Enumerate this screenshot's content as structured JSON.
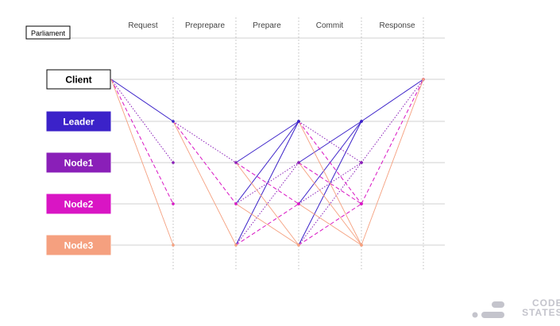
{
  "title": "Parliament",
  "phases": [
    "Request",
    "Preprepare",
    "Prepare",
    "Commit",
    "Response"
  ],
  "nodes": [
    {
      "label": "Client",
      "color": "#ffffff",
      "text_color": "#000000"
    },
    {
      "label": "Leader",
      "color": "#3b22c9",
      "text_color": "#ffffff"
    },
    {
      "label": "Node1",
      "color": "#8a1fb8",
      "text_color": "#ffffff"
    },
    {
      "label": "Node2",
      "color": "#d915c4",
      "text_color": "#ffffff"
    },
    {
      "label": "Node3",
      "color": "#f5a07f",
      "text_color": "#ffffff"
    }
  ],
  "message_colors": {
    "Leader": "#3b22c9",
    "Node1": "#8a1fb8",
    "Node2": "#d915c4",
    "Node3": "#f5a07f",
    "Client": "#3b22c9"
  },
  "messages": [
    {
      "phase_from": 0,
      "from": "Client",
      "to": "Leader",
      "style": "solid",
      "color_of": "Leader"
    },
    {
      "phase_from": 0,
      "from": "Client",
      "to": "Node1",
      "style": "dotted",
      "color_of": "Node1"
    },
    {
      "phase_from": 0,
      "from": "Client",
      "to": "Node2",
      "style": "dashed",
      "color_of": "Node2"
    },
    {
      "phase_from": 0,
      "from": "Client",
      "to": "Node3",
      "style": "solid",
      "color_of": "Node3"
    },
    {
      "phase_from": 1,
      "from": "Leader",
      "to": "Node1",
      "style": "dotted",
      "color_of": "Node1"
    },
    {
      "phase_from": 1,
      "from": "Leader",
      "to": "Node2",
      "style": "dashed",
      "color_of": "Node2"
    },
    {
      "phase_from": 1,
      "from": "Leader",
      "to": "Node3",
      "style": "solid",
      "color_of": "Node3"
    },
    {
      "phase_from": 2,
      "from": "Node1",
      "to": "Leader",
      "style": "solid",
      "color_of": "Leader"
    },
    {
      "phase_from": 2,
      "from": "Node2",
      "to": "Leader",
      "style": "solid",
      "color_of": "Leader"
    },
    {
      "phase_from": 2,
      "from": "Node3",
      "to": "Leader",
      "style": "solid",
      "color_of": "Leader"
    },
    {
      "phase_from": 2,
      "from": "Node2",
      "to": "Node1",
      "style": "dotted",
      "color_of": "Node1"
    },
    {
      "phase_from": 2,
      "from": "Node3",
      "to": "Node1",
      "style": "dotted",
      "color_of": "Node1"
    },
    {
      "phase_from": 2,
      "from": "Node1",
      "to": "Node2",
      "style": "dashed",
      "color_of": "Node2"
    },
    {
      "phase_from": 2,
      "from": "Node3",
      "to": "Node2",
      "style": "dashed",
      "color_of": "Node2"
    },
    {
      "phase_from": 2,
      "from": "Node1",
      "to": "Node3",
      "style": "solid",
      "color_of": "Node3"
    },
    {
      "phase_from": 2,
      "from": "Node2",
      "to": "Node3",
      "style": "solid",
      "color_of": "Node3"
    },
    {
      "phase_from": 3,
      "from": "Node1",
      "to": "Leader",
      "style": "solid",
      "color_of": "Leader"
    },
    {
      "phase_from": 3,
      "from": "Node2",
      "to": "Leader",
      "style": "solid",
      "color_of": "Leader"
    },
    {
      "phase_from": 3,
      "from": "Node3",
      "to": "Leader",
      "style": "solid",
      "color_of": "Leader"
    },
    {
      "phase_from": 3,
      "from": "Leader",
      "to": "Node1",
      "style": "dotted",
      "color_of": "Node1"
    },
    {
      "phase_from": 3,
      "from": "Node2",
      "to": "Node1",
      "style": "dotted",
      "color_of": "Node1"
    },
    {
      "phase_from": 3,
      "from": "Node3",
      "to": "Node1",
      "style": "dotted",
      "color_of": "Node1"
    },
    {
      "phase_from": 3,
      "from": "Leader",
      "to": "Node2",
      "style": "dashed",
      "color_of": "Node2"
    },
    {
      "phase_from": 3,
      "from": "Node1",
      "to": "Node2",
      "style": "dashed",
      "color_of": "Node2"
    },
    {
      "phase_from": 3,
      "from": "Node3",
      "to": "Node2",
      "style": "dashed",
      "color_of": "Node2"
    },
    {
      "phase_from": 3,
      "from": "Leader",
      "to": "Node3",
      "style": "solid",
      "color_of": "Node3"
    },
    {
      "phase_from": 3,
      "from": "Node1",
      "to": "Node3",
      "style": "solid",
      "color_of": "Node3"
    },
    {
      "phase_from": 3,
      "from": "Node2",
      "to": "Node3",
      "style": "solid",
      "color_of": "Node3"
    },
    {
      "phase_from": 4,
      "from": "Leader",
      "to": "Client",
      "style": "solid",
      "color_of": "Leader"
    },
    {
      "phase_from": 4,
      "from": "Node1",
      "to": "Client",
      "style": "dotted",
      "color_of": "Node1"
    },
    {
      "phase_from": 4,
      "from": "Node2",
      "to": "Client",
      "style": "dashed",
      "color_of": "Node2"
    },
    {
      "phase_from": 4,
      "from": "Node3",
      "to": "Client",
      "style": "solid",
      "color_of": "Node3"
    }
  ],
  "logo": {
    "line1": "CODE",
    "line2": "STATES",
    "icon": "code-states-logo-icon",
    "color": "#c4c4cc"
  }
}
